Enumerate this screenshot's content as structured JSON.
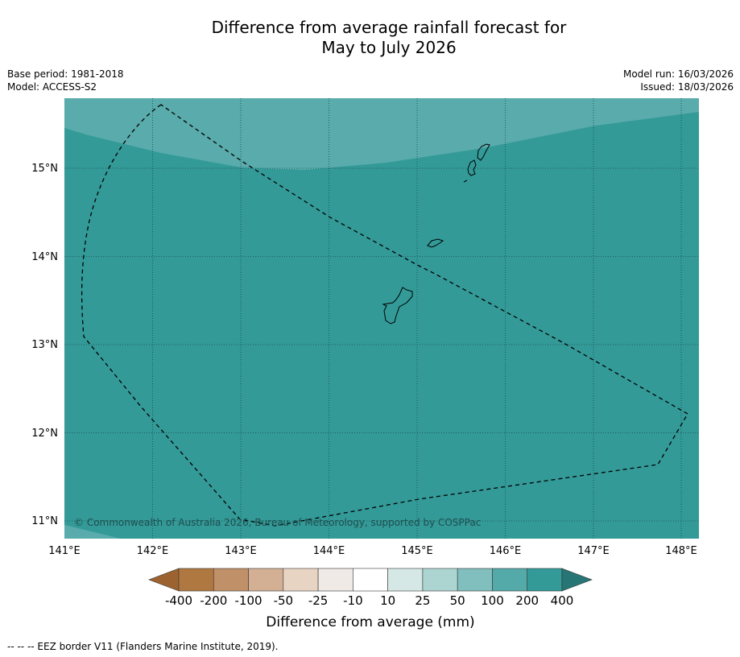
{
  "title": {
    "line1": "Difference from average rainfall forecast for",
    "line2": "May to July 2026"
  },
  "meta_left": {
    "base_period": "Base period: 1981-2018",
    "model": "Model: ACCESS-S2"
  },
  "meta_right": {
    "model_run": "Model run: 16/03/2026",
    "issued": "Issued: 18/03/2026"
  },
  "map": {
    "lon_labels": [
      "141°E",
      "142°E",
      "143°E",
      "144°E",
      "145°E",
      "146°E",
      "147°E",
      "148°E"
    ],
    "lat_labels": [
      "15°N",
      "14°N",
      "13°N",
      "12°N",
      "11°N"
    ],
    "lon_range": [
      141.0,
      148.2
    ],
    "lat_range": [
      10.8,
      15.8
    ],
    "colors": {
      "dominant_band_200_400": "#339a98",
      "band_100_200": "#5aabab",
      "land_outline": "#000000"
    },
    "copyright": "© Commonwealth of Australia 2026, Bureau of Meteorology, supported by COSPPac"
  },
  "colorbar": {
    "label": "Difference from average (mm)",
    "ticks": [
      "-400",
      "-200",
      "-100",
      "-50",
      "-25",
      "-10",
      "10",
      "25",
      "50",
      "100",
      "200",
      "400"
    ],
    "low_extend_color": "#9c6330",
    "high_extend_color": "#277675",
    "segment_colors": [
      "#b07841",
      "#c09068",
      "#d3b094",
      "#e8d4c3",
      "#efeae6",
      "#ffffff",
      "#d5e8e6",
      "#acd5d2",
      "#81bfbe",
      "#54aaa9",
      "#339a98"
    ]
  },
  "footer": {
    "legend_text": "-- -- -- EEZ border V11 (Flanders Marine Institute, 2019)."
  }
}
